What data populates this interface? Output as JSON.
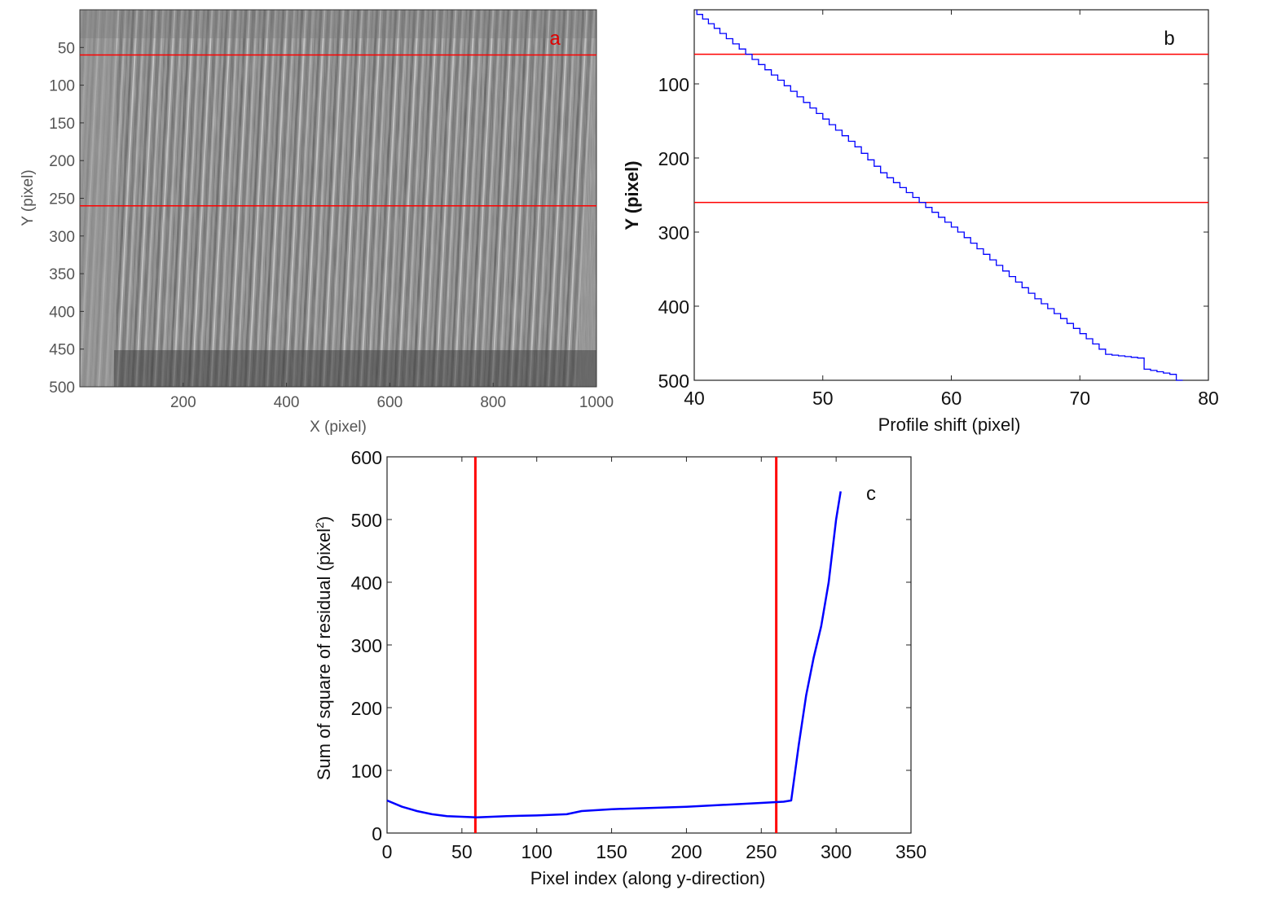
{
  "chart_data": [
    {
      "panel": "a",
      "type": "image",
      "panel_label": "a",
      "xlabel": "X (pixel)",
      "ylabel": "Y (pixel)",
      "xlim": [
        0,
        1000
      ],
      "ylim": [
        500,
        0
      ],
      "xticks": [
        200,
        400,
        600,
        800,
        1000
      ],
      "yticks": [
        50,
        100,
        150,
        200,
        250,
        300,
        350,
        400,
        450,
        500
      ],
      "marker_lines_y": [
        60,
        260
      ],
      "marker_color": "#ff0000"
    },
    {
      "panel": "b",
      "type": "line",
      "panel_label": "b",
      "xlabel": "Profile shift (pixel)",
      "ylabel": "Y (pixel)",
      "xlim": [
        40,
        80
      ],
      "ylim": [
        500,
        0
      ],
      "xticks": [
        40,
        50,
        60,
        70,
        80
      ],
      "yticks": [
        100,
        200,
        300,
        400,
        500
      ],
      "marker_lines_y": [
        60,
        260
      ],
      "marker_color": "#ff0000",
      "series": [
        {
          "color": "#0000ff",
          "x": [
            40.2,
            42,
            44.5,
            47,
            50,
            53,
            55,
            58,
            61,
            64,
            67,
            70,
            72.5,
            75,
            75.5,
            77.5,
            78
          ],
          "y": [
            0,
            25,
            60,
            95,
            140,
            185,
            220,
            260,
            300,
            345,
            390,
            430,
            465,
            470,
            485,
            492,
            500
          ]
        }
      ]
    },
    {
      "panel": "c",
      "type": "line",
      "panel_label": "c",
      "xlabel": "Pixel index (along y-direction)",
      "ylabel_main": "Sum of square of residual (pixel",
      "ylabel_sup": "2",
      "ylabel_end": ")",
      "xlim": [
        0,
        350
      ],
      "ylim": [
        0,
        600
      ],
      "xticks": [
        0,
        50,
        100,
        150,
        200,
        250,
        300,
        350
      ],
      "yticks": [
        0,
        100,
        200,
        300,
        400,
        500,
        600
      ],
      "marker_lines_x": [
        59,
        260
      ],
      "marker_color": "#ff0000",
      "series": [
        {
          "color": "#0000ff",
          "x": [
            0,
            10,
            20,
            30,
            40,
            50,
            60,
            70,
            80,
            100,
            120,
            130,
            150,
            200,
            250,
            265,
            270,
            275,
            280,
            285,
            290,
            295,
            300,
            303
          ],
          "y": [
            52,
            42,
            35,
            30,
            27,
            26,
            25,
            26,
            27,
            28,
            30,
            35,
            38,
            42,
            48,
            50,
            52,
            140,
            220,
            280,
            330,
            400,
            500,
            545
          ]
        }
      ]
    }
  ]
}
